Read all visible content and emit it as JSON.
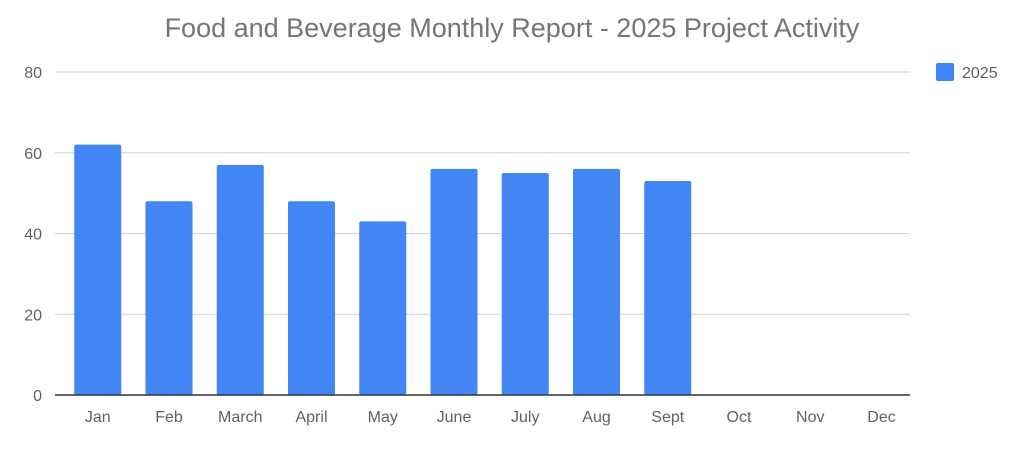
{
  "chart_data": {
    "type": "bar",
    "title": "Food and Beverage Monthly Report - 2025 Project Activity",
    "categories": [
      "Jan",
      "Feb",
      "March",
      "April",
      "May",
      "June",
      "July",
      "Aug",
      "Sept",
      "Oct",
      "Nov",
      "Dec"
    ],
    "series": [
      {
        "name": "2025",
        "color": "#4285f4",
        "values": [
          62,
          48,
          57,
          48,
          43,
          56,
          55,
          56,
          53,
          null,
          null,
          null
        ]
      }
    ],
    "yticks": [
      0,
      20,
      40,
      60,
      80
    ],
    "ylim": [
      0,
      80
    ],
    "xlabel": "",
    "ylabel": "",
    "grid": true,
    "legend_position": "right"
  }
}
